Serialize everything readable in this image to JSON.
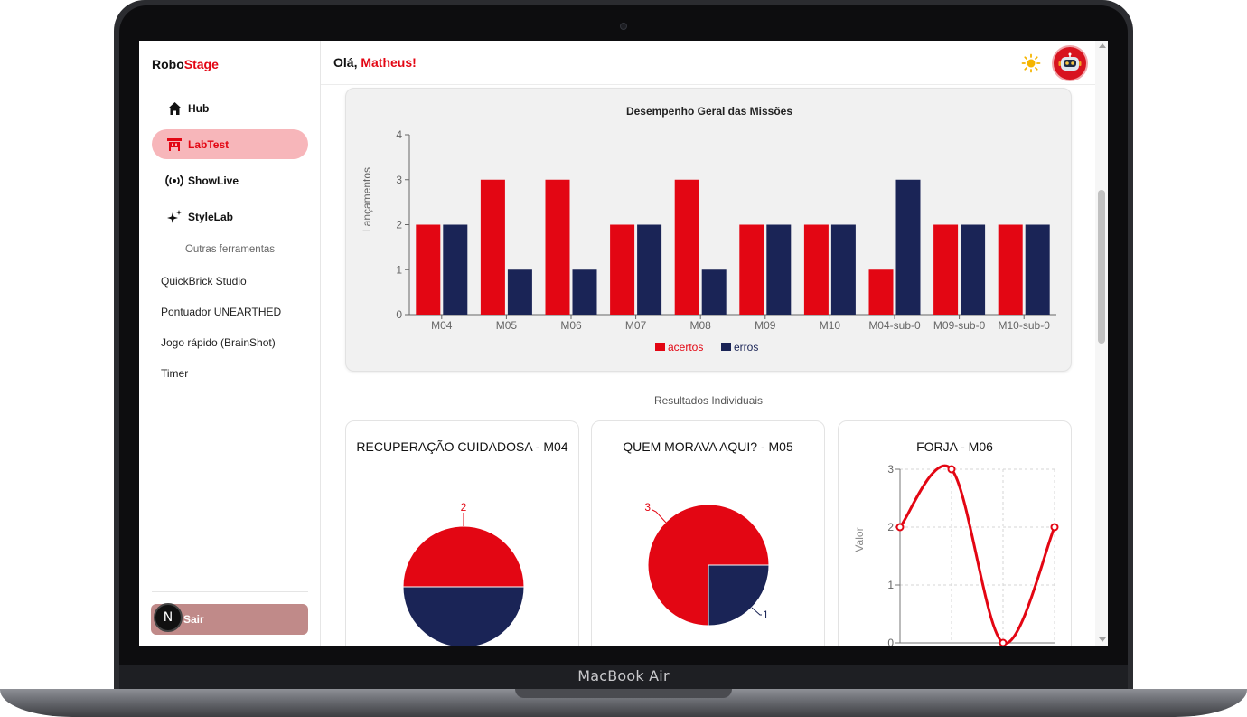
{
  "device": {
    "label": "MacBook Air"
  },
  "sidebar": {
    "brand_prefix": "Robo",
    "brand_suffix": "Stage",
    "items": [
      {
        "label": "Hub",
        "icon": "home-icon"
      },
      {
        "label": "LabTest",
        "icon": "lab-icon",
        "active": true
      },
      {
        "label": "ShowLive",
        "icon": "broadcast-icon"
      },
      {
        "label": "StyleLab",
        "icon": "sparkles-icon"
      }
    ],
    "section_label": "Outras ferramentas",
    "tools": [
      "QuickBrick Studio",
      "Pontuador UNEARTHED",
      "Jogo rápido (BrainShot)",
      "Timer"
    ],
    "logout_label": "Sair",
    "badge_letter": "N"
  },
  "header": {
    "greeting": "Olá, ",
    "user_name": "Matheus!"
  },
  "colors": {
    "accent": "#e30613",
    "navy": "#1a2456"
  },
  "main_chart": {
    "chart_data": {
      "type": "bar",
      "title": "Desempenho Geral das Missões",
      "xlabel": "",
      "ylabel": "Lançamentos",
      "categories": [
        "M04",
        "M05",
        "M06",
        "M07",
        "M08",
        "M09",
        "M10",
        "M04-sub-0",
        "M09-sub-0",
        "M10-sub-0"
      ],
      "series": [
        {
          "name": "acertos",
          "color": "#e30613",
          "values": [
            2,
            3,
            3,
            2,
            3,
            2,
            2,
            1,
            2,
            2
          ]
        },
        {
          "name": "erros",
          "color": "#1a2456",
          "values": [
            2,
            1,
            1,
            2,
            1,
            2,
            2,
            3,
            2,
            2
          ]
        }
      ],
      "ylim": [
        0,
        4
      ],
      "yticks": [
        "0",
        "1",
        "2",
        "3",
        "4"
      ],
      "legend": "bottom"
    }
  },
  "section_title": "Resultados Individuais",
  "mini_charts": [
    {
      "title": "RECUPERAÇÃO CUIDADOSA - M04",
      "chart_data": {
        "type": "pie",
        "slices": [
          {
            "value": 2,
            "color": "#e30613"
          },
          {
            "value": 2,
            "color": "#1a2456"
          }
        ],
        "labels_shown": [
          "2"
        ]
      }
    },
    {
      "title": "QUEM MORAVA AQUI? - M05",
      "chart_data": {
        "type": "pie",
        "slices": [
          {
            "value": 3,
            "color": "#e30613"
          },
          {
            "value": 1,
            "color": "#1a2456"
          }
        ],
        "labels_shown": [
          "3",
          "1"
        ]
      }
    },
    {
      "title": "FORJA - M06",
      "chart_data": {
        "type": "line",
        "ylabel": "Valor",
        "ylim": [
          0,
          3
        ],
        "yticks": [
          "0",
          "1",
          "2",
          "3"
        ],
        "values": [
          2,
          3,
          0,
          2
        ]
      }
    }
  ]
}
